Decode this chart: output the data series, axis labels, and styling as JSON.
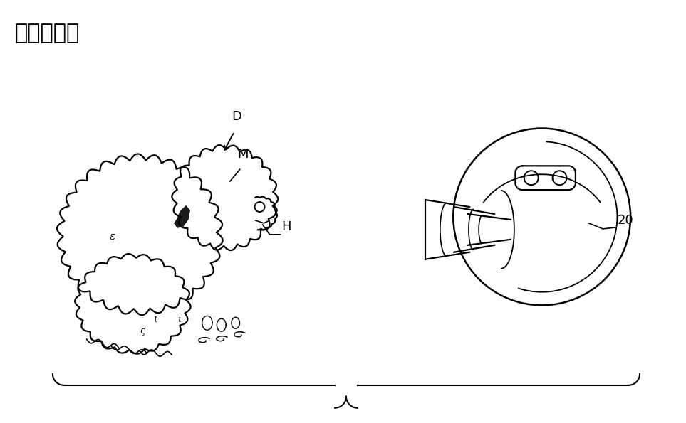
{
  "title": "【図３Ａ】",
  "bg_color": "#ffffff",
  "line_color": "#000000",
  "label_D": "D",
  "label_M": "M",
  "label_H": "H",
  "label_20": "20",
  "fig_width": 9.63,
  "fig_height": 5.95,
  "dpi": 100
}
